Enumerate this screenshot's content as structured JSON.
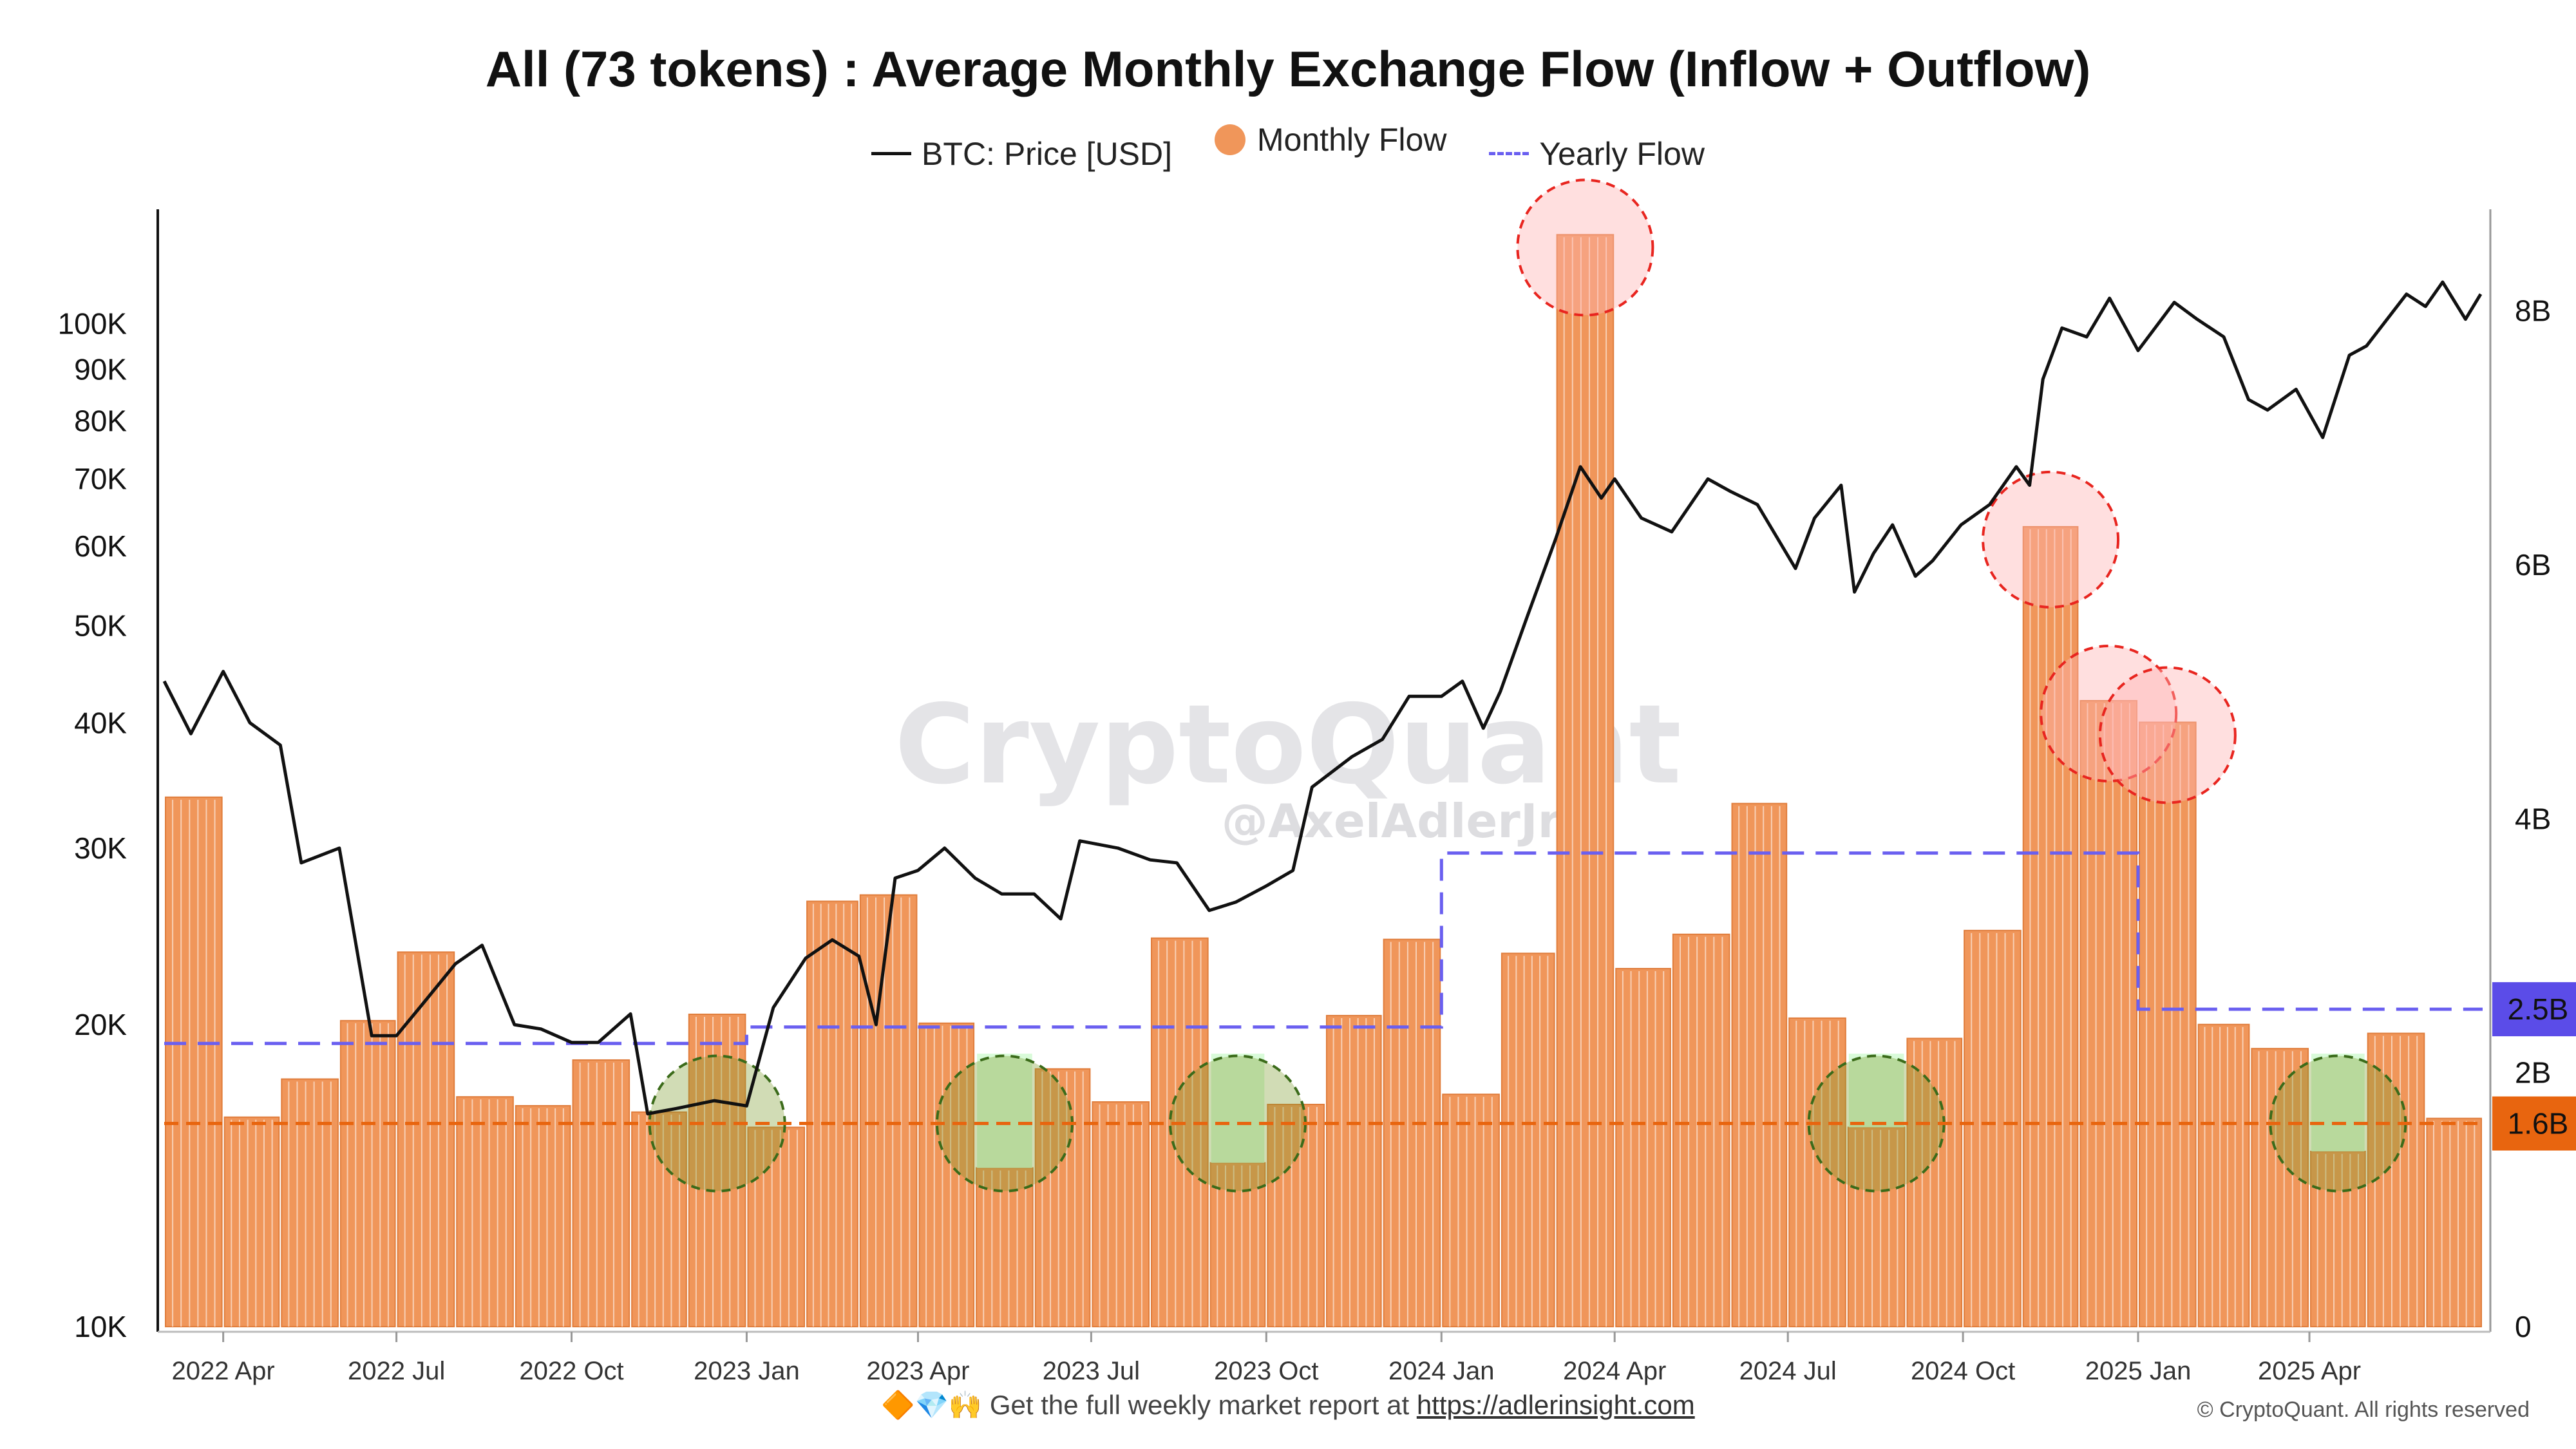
{
  "page": {
    "title": "All (73 tokens) : Average Monthly Exchange Flow (Inflow + Outflow)",
    "legend": [
      {
        "label": "BTC: Price [USD]",
        "kind": "line",
        "color": "#111111"
      },
      {
        "label": "Monthly Flow",
        "kind": "dot",
        "color": "#f0965a"
      },
      {
        "label": "Yearly Flow",
        "kind": "dash",
        "color": "#6a5ff0"
      }
    ],
    "watermark": {
      "brand": "CryptoQuant",
      "handle": "@AxelAdlerJr"
    },
    "footer": {
      "icons": "🔶💎🙌",
      "text": "Get the full weekly market report at",
      "link": "https://adlerinsight.com"
    },
    "copyright": "© CryptoQuant. All rights reserved"
  },
  "chart_data": {
    "type": "bar",
    "x_axis": {
      "ticks": [
        "2022 Apr",
        "2022 Jul",
        "2022 Oct",
        "2023 Jan",
        "2023 Apr",
        "2023 Jul",
        "2023 Oct",
        "2024 Jan",
        "2024 Apr",
        "2024 Jul",
        "2024 Oct",
        "2025 Jan",
        "2025 Apr"
      ]
    },
    "y_left": {
      "scale": "log",
      "range": [
        10000,
        130000
      ],
      "ticks": [
        {
          "value": 10000,
          "label": "10K"
        },
        {
          "value": 20000,
          "label": "20K"
        },
        {
          "value": 30000,
          "label": "30K"
        },
        {
          "value": 40000,
          "label": "40K"
        },
        {
          "value": 50000,
          "label": "50K"
        },
        {
          "value": 60000,
          "label": "60K"
        },
        {
          "value": 70000,
          "label": "70K"
        },
        {
          "value": 80000,
          "label": "80K"
        },
        {
          "value": 90000,
          "label": "90K"
        },
        {
          "value": 100000,
          "label": "100K"
        }
      ]
    },
    "y_right": {
      "scale": "linear",
      "range": [
        0,
        8.8
      ],
      "ticks": [
        {
          "value": 0,
          "label": "0"
        },
        {
          "value": 2,
          "label": "2B"
        },
        {
          "value": 4,
          "label": "4B"
        },
        {
          "value": 6,
          "label": "6B"
        },
        {
          "value": 8,
          "label": "8B"
        }
      ]
    },
    "series": [
      {
        "name": "Monthly Flow",
        "unit": "B USD",
        "color": "#f0965a",
        "categories": [
          "2022-03",
          "2022-04",
          "2022-05",
          "2022-06",
          "2022-07",
          "2022-08",
          "2022-09",
          "2022-10",
          "2022-11",
          "2022-12",
          "2023-01",
          "2023-02",
          "2023-03",
          "2023-04",
          "2023-05",
          "2023-06",
          "2023-07",
          "2023-08",
          "2023-09",
          "2023-10",
          "2023-11",
          "2023-12",
          "2024-01",
          "2024-02",
          "2024-03",
          "2024-04",
          "2024-05",
          "2024-06",
          "2024-07",
          "2024-08",
          "2024-09",
          "2024-10",
          "2024-11",
          "2024-12",
          "2025-01",
          "2025-02",
          "2025-03",
          "2025-04",
          "2025-05",
          "2025-06"
        ],
        "values": [
          4.17,
          1.65,
          1.95,
          2.41,
          2.95,
          1.81,
          1.74,
          2.1,
          1.69,
          2.46,
          1.57,
          3.35,
          3.4,
          2.39,
          1.25,
          2.03,
          1.77,
          3.06,
          1.29,
          1.75,
          2.45,
          3.05,
          1.83,
          2.94,
          8.6,
          2.82,
          3.09,
          4.12,
          2.43,
          1.57,
          2.27,
          3.12,
          6.3,
          4.93,
          4.76,
          2.38,
          2.19,
          1.38,
          2.31,
          1.64
        ]
      },
      {
        "name": "Yearly Flow",
        "unit": "B USD",
        "color": "#6a5ff0",
        "style": "dashed",
        "segments": [
          {
            "from": "2022-03",
            "to": "2022-12",
            "value": 2.23
          },
          {
            "from": "2023-01",
            "to": "2023-12",
            "value": 2.36
          },
          {
            "from": "2024-01",
            "to": "2024-12",
            "value": 3.73
          },
          {
            "from": "2025-01",
            "to": "2025-06",
            "value": 2.5
          }
        ]
      },
      {
        "name": "BTC: Price [USD]",
        "unit": "USD",
        "color": "#111111",
        "axis": "left",
        "x": [
          "2022-03-01",
          "2022-03-15",
          "2022-04-01",
          "2022-04-15",
          "2022-05-01",
          "2022-05-12",
          "2022-06-01",
          "2022-06-18",
          "2022-07-01",
          "2022-07-15",
          "2022-08-01",
          "2022-08-15",
          "2022-09-01",
          "2022-09-15",
          "2022-10-01",
          "2022-10-15",
          "2022-11-01",
          "2022-11-10",
          "2022-11-25",
          "2022-12-15",
          "2023-01-01",
          "2023-01-15",
          "2023-02-01",
          "2023-02-15",
          "2023-03-01",
          "2023-03-10",
          "2023-03-20",
          "2023-04-01",
          "2023-04-15",
          "2023-05-01",
          "2023-05-15",
          "2023-06-01",
          "2023-06-15",
          "2023-06-25",
          "2023-07-15",
          "2023-08-01",
          "2023-08-15",
          "2023-09-01",
          "2023-09-15",
          "2023-10-01",
          "2023-10-15",
          "2023-10-25",
          "2023-11-15",
          "2023-12-01",
          "2023-12-15",
          "2024-01-01",
          "2024-01-12",
          "2024-01-23",
          "2024-02-01",
          "2024-02-15",
          "2024-03-01",
          "2024-03-14",
          "2024-03-25",
          "2024-04-01",
          "2024-04-15",
          "2024-05-01",
          "2024-05-20",
          "2024-06-01",
          "2024-06-15",
          "2024-07-05",
          "2024-07-15",
          "2024-07-29",
          "2024-08-05",
          "2024-08-15",
          "2024-08-25",
          "2024-09-06",
          "2024-09-15",
          "2024-09-30",
          "2024-10-15",
          "2024-10-29",
          "2024-11-05",
          "2024-11-12",
          "2024-11-22",
          "2024-12-05",
          "2024-12-17",
          "2025-01-01",
          "2025-01-20",
          "2025-02-01",
          "2025-02-15",
          "2025-02-28",
          "2025-03-10",
          "2025-03-25",
          "2025-04-08",
          "2025-04-22",
          "2025-05-01",
          "2025-05-22",
          "2025-06-01",
          "2025-06-10",
          "2025-06-22",
          "2025-06-30"
        ],
        "values": [
          44000,
          39000,
          45000,
          40000,
          38000,
          29000,
          30000,
          19500,
          19500,
          21000,
          23000,
          24000,
          20000,
          19800,
          19200,
          19200,
          20500,
          16300,
          16500,
          16800,
          16600,
          20800,
          23300,
          24300,
          23400,
          20000,
          28000,
          28500,
          30000,
          28000,
          27000,
          27000,
          25500,
          30500,
          30000,
          29200,
          29000,
          26000,
          26500,
          27500,
          28500,
          34500,
          37000,
          38500,
          42500,
          42500,
          44000,
          39500,
          43000,
          51000,
          61000,
          72000,
          67000,
          70000,
          64000,
          62000,
          70000,
          68000,
          66000,
          57000,
          64000,
          69000,
          54000,
          59000,
          63000,
          56000,
          58000,
          63000,
          66000,
          72000,
          69000,
          88000,
          99000,
          97000,
          106000,
          94000,
          105000,
          101000,
          97000,
          84000,
          82000,
          86000,
          77000,
          93000,
          95000,
          107000,
          104000,
          110000,
          101000,
          107000
        ]
      }
    ],
    "annotations": {
      "red_circles": [
        "2024-03",
        "2024-11",
        "2024-12",
        "2025-01"
      ],
      "green_circles": [
        "2022-12",
        "2023-05",
        "2023-09",
        "2024-08",
        "2025-04"
      ],
      "reference_line": {
        "value": 1.6,
        "label": "1.6B",
        "color": "#e8650f",
        "style": "dashed"
      },
      "yearly_badge": {
        "value": 2.5,
        "label": "2.5B",
        "color": "#5b4ce8"
      }
    }
  }
}
